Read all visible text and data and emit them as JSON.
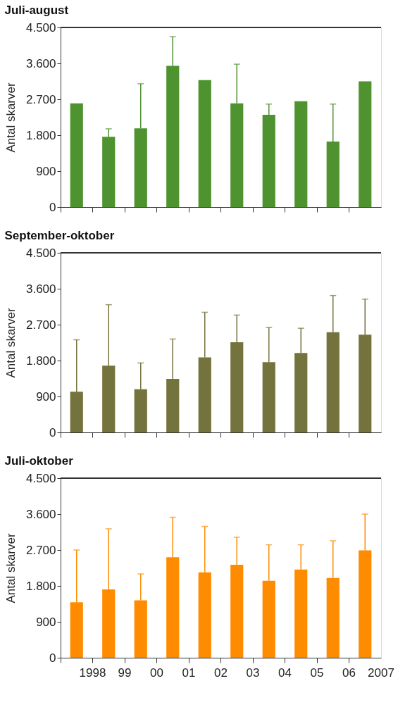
{
  "chart_data": [
    {
      "type": "bar",
      "title": "Juli-august",
      "ylabel": "Antal skarver",
      "tick_labels": "y",
      "categories": [
        "1998",
        "99",
        "00",
        "01",
        "02",
        "03",
        "04",
        "05",
        "06",
        "2007"
      ],
      "values": [
        2600,
        1760,
        1970,
        3540,
        3180,
        2600,
        2310,
        2650,
        1640,
        3150
      ],
      "errors": [
        null,
        [
          1760,
          1960
        ],
        [
          1970,
          3090
        ],
        [
          3540,
          4270
        ],
        null,
        [
          2600,
          3580
        ],
        [
          2310,
          2580
        ],
        null,
        [
          1640,
          2580
        ],
        null
      ],
      "color": "#4e9330",
      "ylim": [
        0,
        4500
      ],
      "yticks": [
        0,
        900,
        {
          "value": 1800,
          "label": "1.800"
        },
        {
          "value": 2700,
          "label": "2.700"
        },
        {
          "value": 3600,
          "label": "3.600"
        },
        {
          "value": 4500,
          "label": "4.500"
        }
      ]
    },
    {
      "type": "bar",
      "title": "September-oktober",
      "ylabel": "Antal skarver",
      "tick_labels": "y",
      "categories": [
        "1998",
        "99",
        "00",
        "01",
        "02",
        "03",
        "04",
        "05",
        "06",
        "2007"
      ],
      "values": [
        1020,
        1670,
        1080,
        1340,
        1880,
        2260,
        1760,
        1990,
        2510,
        2450
      ],
      "errors": [
        [
          1020,
          2320
        ],
        [
          1670,
          3200
        ],
        [
          1080,
          1740
        ],
        [
          1340,
          2340
        ],
        [
          1880,
          3010
        ],
        [
          2260,
          2940
        ],
        [
          1760,
          2630
        ],
        [
          1990,
          2610
        ],
        [
          2510,
          3430
        ],
        [
          2450,
          3340
        ]
      ],
      "color": "#75733d",
      "ylim": [
        0,
        4500
      ],
      "yticks": [
        0,
        900,
        {
          "value": 1800,
          "label": "1.800"
        },
        {
          "value": 2700,
          "label": "2.700"
        },
        {
          "value": 3600,
          "label": "3.600"
        },
        {
          "value": 4500,
          "label": "4.500"
        }
      ]
    },
    {
      "type": "bar",
      "title": "Juli-oktober",
      "ylabel": "Antal skarver",
      "categories": [
        "1998",
        "99",
        "00",
        "01",
        "02",
        "03",
        "04",
        "05",
        "06",
        "2007"
      ],
      "values": [
        1390,
        1710,
        1440,
        2520,
        2140,
        2330,
        1930,
        2210,
        2000,
        2690
      ],
      "errors": [
        [
          1390,
          2700
        ],
        [
          1710,
          3230
        ],
        [
          1440,
          2100
        ],
        [
          2520,
          3520
        ],
        [
          2140,
          3290
        ],
        [
          2330,
          3020
        ],
        [
          1930,
          2830
        ],
        [
          2210,
          2830
        ],
        [
          2000,
          2930
        ],
        [
          2690,
          3600
        ]
      ],
      "color": "#ff8c00",
      "ylim": [
        0,
        4500
      ],
      "yticks": [
        0,
        900,
        {
          "value": 1800,
          "label": "1.800"
        },
        {
          "value": 2700,
          "label": "2.700"
        },
        {
          "value": 3600,
          "label": "3.600"
        },
        {
          "value": 4500,
          "label": "4.500"
        }
      ]
    }
  ]
}
